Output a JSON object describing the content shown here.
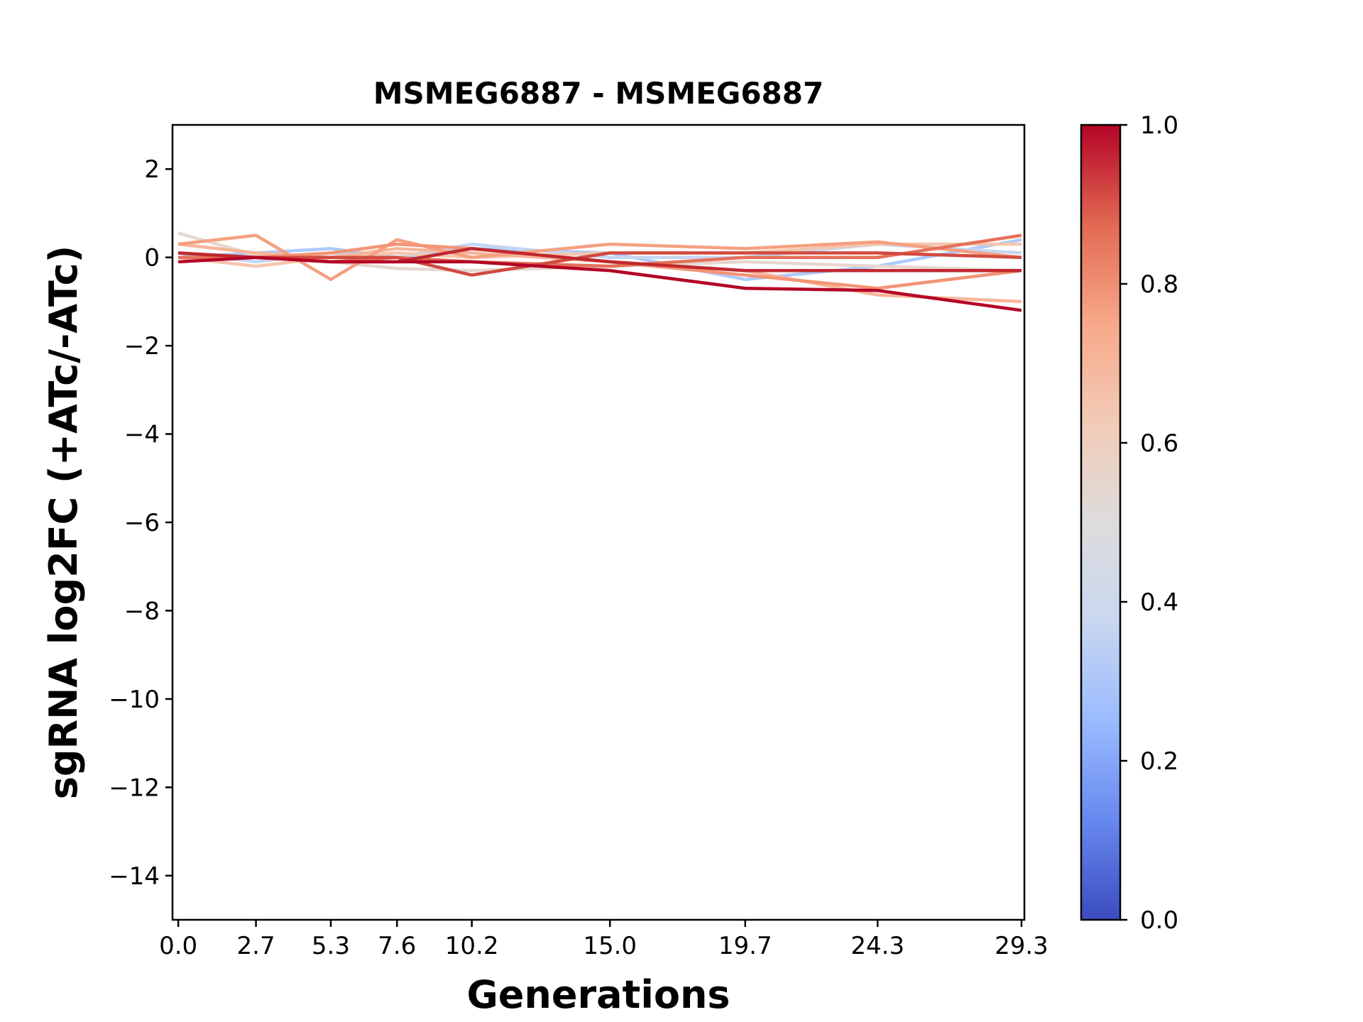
{
  "chart_data": {
    "type": "line",
    "title": "MSMEG6887 - MSMEG6887",
    "xlabel": "Generations",
    "ylabel": "sgRNA log2FC (+ATc/-ATc)",
    "x": [
      0.0,
      2.7,
      5.3,
      7.6,
      10.2,
      15.0,
      19.7,
      24.3,
      29.3
    ],
    "x_tick_labels": [
      "0.0",
      "2.7",
      "5.3",
      "7.6",
      "10.2",
      "15.0",
      "19.7",
      "24.3",
      "29.3"
    ],
    "xlim": [
      -0.2,
      29.4
    ],
    "ylim": [
      -15,
      3
    ],
    "y_ticks": [
      2,
      0,
      -2,
      -4,
      -6,
      -8,
      -10,
      -12,
      -14
    ],
    "y_tick_labels": [
      "2",
      "0",
      "−2",
      "−4",
      "−6",
      "−8",
      "−10",
      "−12",
      "−14"
    ],
    "grid": false,
    "colormap": "coolwarm",
    "colorbar": {
      "range": [
        0.0,
        1.0
      ],
      "ticks": [
        "0.0",
        "0.2",
        "0.4",
        "0.6",
        "0.8",
        "1.0"
      ],
      "stops": [
        "#3b4cc0",
        "#6788ee",
        "#9abbff",
        "#c9d7f0",
        "#dddcdc",
        "#f2cbb7",
        "#f7a889",
        "#e26952",
        "#b40426"
      ]
    },
    "series": [
      {
        "color": "#aec9fc",
        "values": [
          0.0,
          0.1,
          0.2,
          0.0,
          0.2,
          0.1,
          -0.5,
          -0.2,
          0.4
        ]
      },
      {
        "color": "#c5d6f2",
        "values": [
          0.1,
          -0.1,
          0.1,
          0.0,
          0.3,
          0.0,
          0.0,
          0.3,
          0.1
        ]
      },
      {
        "color": "#e6d7cf",
        "values": [
          0.55,
          0.05,
          -0.1,
          -0.25,
          -0.3,
          -0.2,
          -0.1,
          -0.2,
          -0.3
        ]
      },
      {
        "color": "#f4c5ad",
        "values": [
          0.0,
          -0.2,
          0.0,
          0.1,
          0.0,
          0.1,
          0.1,
          0.3,
          0.3
        ]
      },
      {
        "color": "#f7b599",
        "values": [
          0.3,
          0.1,
          0.0,
          0.2,
          0.1,
          -0.1,
          -0.3,
          -0.85,
          -1.0
        ]
      },
      {
        "color": "#f5a081",
        "values": [
          0.3,
          0.5,
          -0.5,
          0.4,
          0.0,
          0.3,
          0.2,
          0.35,
          0.0
        ]
      },
      {
        "color": "#f39475",
        "values": [
          0.0,
          0.0,
          0.1,
          0.3,
          0.2,
          -0.1,
          -0.4,
          -0.7,
          -0.3
        ]
      },
      {
        "color": "#e57058",
        "values": [
          0.0,
          0.0,
          -0.1,
          0.0,
          -0.1,
          -0.2,
          0.0,
          0.0,
          0.5
        ]
      },
      {
        "color": "#d1493f",
        "values": [
          0.1,
          0.0,
          0.0,
          0.0,
          -0.4,
          0.1,
          0.1,
          0.1,
          0.0
        ]
      },
      {
        "color": "#c0282f",
        "values": [
          0.1,
          0.0,
          -0.1,
          -0.1,
          0.2,
          -0.1,
          -0.3,
          -0.3,
          -0.3
        ]
      },
      {
        "color": "#b40426",
        "values": [
          -0.1,
          0.0,
          -0.1,
          -0.1,
          -0.1,
          -0.3,
          -0.7,
          -0.75,
          -1.2
        ]
      }
    ]
  }
}
